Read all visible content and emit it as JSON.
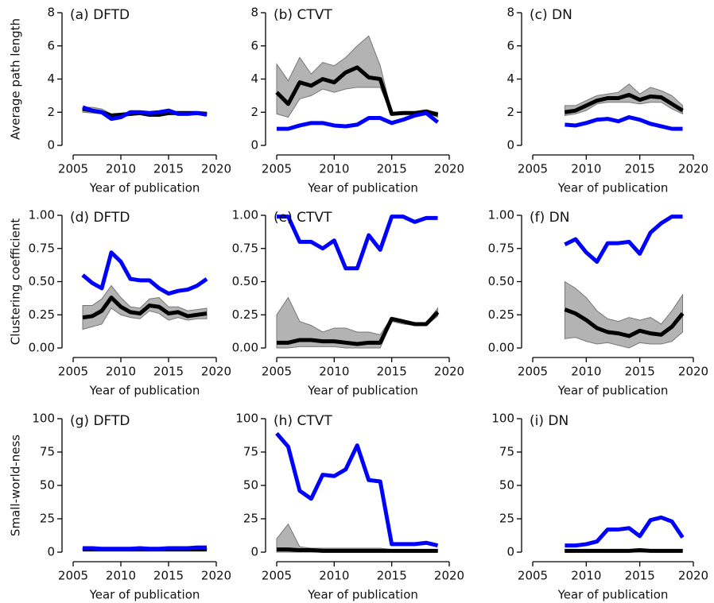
{
  "chart_data": [
    {
      "type": "line",
      "title": "(a) DFTD",
      "xlabel": "Year of publication",
      "ylabel": "Average path length",
      "x": [
        2006,
        2007,
        2008,
        2009,
        2010,
        2011,
        2012,
        2013,
        2014,
        2015,
        2016,
        2017,
        2018,
        2019
      ],
      "band": {
        "color": "#b3b3b3",
        "upper": [
          2.3,
          2.3,
          2.2,
          1.9,
          1.9,
          2.0,
          2.0,
          2.0,
          2.0,
          2.1,
          2.0,
          2.0,
          2.0,
          2.0
        ],
        "lower": [
          2.0,
          1.95,
          1.9,
          1.7,
          1.75,
          1.8,
          1.85,
          1.75,
          1.75,
          1.85,
          1.85,
          1.85,
          1.85,
          1.8
        ]
      },
      "series": [
        {
          "color": "#000000",
          "values": [
            2.2,
            2.1,
            2.0,
            1.8,
            1.85,
            1.9,
            1.95,
            1.85,
            1.85,
            1.95,
            1.95,
            1.95,
            1.95,
            1.9
          ]
        },
        {
          "color": "#0000ff",
          "values": [
            2.3,
            2.1,
            2.0,
            1.6,
            1.7,
            2.0,
            2.0,
            1.95,
            2.0,
            2.1,
            1.9,
            1.9,
            1.95,
            1.85
          ]
        }
      ],
      "xlim": [
        2005,
        2020
      ],
      "xticks": [
        2005,
        2010,
        2015,
        2020
      ],
      "ylim": [
        0,
        8
      ],
      "yticks": [
        0,
        2,
        4,
        6,
        8
      ]
    },
    {
      "type": "line",
      "title": "(b) CTVT",
      "xlabel": "Year of publication",
      "x": [
        2005,
        2006,
        2007,
        2008,
        2009,
        2010,
        2011,
        2012,
        2013,
        2014,
        2015,
        2016,
        2017,
        2018,
        2019
      ],
      "band": {
        "color": "#b3b3b3",
        "upper": [
          4.9,
          3.9,
          5.3,
          4.3,
          5.0,
          4.8,
          5.3,
          6.0,
          6.6,
          4.8,
          2.0,
          2.0,
          2.0,
          2.1,
          2.0
        ],
        "lower": [
          1.9,
          1.7,
          2.8,
          3.0,
          3.4,
          3.2,
          3.4,
          3.5,
          3.5,
          3.5,
          1.85,
          1.9,
          1.9,
          1.95,
          1.7
        ]
      },
      "series": [
        {
          "color": "#000000",
          "values": [
            3.2,
            2.5,
            3.8,
            3.6,
            4.0,
            3.8,
            4.4,
            4.7,
            4.1,
            4.0,
            1.9,
            1.95,
            1.95,
            2.05,
            1.85
          ]
        },
        {
          "color": "#0000ff",
          "values": [
            1.0,
            1.0,
            1.2,
            1.35,
            1.35,
            1.2,
            1.15,
            1.25,
            1.65,
            1.65,
            1.35,
            1.55,
            1.8,
            1.95,
            1.4
          ]
        }
      ],
      "xlim": [
        2005,
        2020
      ],
      "xticks": [
        2005,
        2010,
        2015,
        2020
      ],
      "ylim": [
        0,
        8
      ],
      "yticks": [
        0,
        2,
        4,
        6,
        8
      ]
    },
    {
      "type": "line",
      "title": "(c) DN",
      "xlabel": "Year of publication",
      "x": [
        2008,
        2009,
        2010,
        2011,
        2012,
        2013,
        2014,
        2015,
        2016,
        2017,
        2018,
        2019
      ],
      "band": {
        "color": "#b3b3b3",
        "upper": [
          2.4,
          2.4,
          2.7,
          3.0,
          3.1,
          3.2,
          3.7,
          3.1,
          3.5,
          3.3,
          3.0,
          2.4
        ],
        "lower": [
          1.8,
          1.9,
          2.1,
          2.5,
          2.6,
          2.6,
          2.6,
          2.5,
          2.6,
          2.6,
          2.2,
          1.9
        ]
      },
      "series": [
        {
          "color": "#000000",
          "values": [
            2.0,
            2.1,
            2.4,
            2.7,
            2.85,
            2.85,
            3.05,
            2.75,
            2.95,
            2.9,
            2.5,
            2.1
          ]
        },
        {
          "color": "#0000ff",
          "values": [
            1.25,
            1.2,
            1.35,
            1.55,
            1.6,
            1.45,
            1.7,
            1.55,
            1.3,
            1.15,
            1.0,
            1.0
          ]
        }
      ],
      "xlim": [
        2005,
        2020
      ],
      "xticks": [
        2005,
        2010,
        2015,
        2020
      ],
      "ylim": [
        0,
        8
      ],
      "yticks": [
        0,
        2,
        4,
        6,
        8
      ]
    },
    {
      "type": "line",
      "title": "(d) DFTD",
      "xlabel": "Year of publication",
      "ylabel": "Clustering coefficient",
      "x": [
        2006,
        2007,
        2008,
        2009,
        2010,
        2011,
        2012,
        2013,
        2014,
        2015,
        2016,
        2017,
        2018,
        2019
      ],
      "band": {
        "color": "#b3b3b3",
        "upper": [
          0.32,
          0.32,
          0.37,
          0.47,
          0.38,
          0.31,
          0.3,
          0.37,
          0.38,
          0.31,
          0.31,
          0.28,
          0.29,
          0.3
        ],
        "lower": [
          0.14,
          0.16,
          0.18,
          0.3,
          0.25,
          0.23,
          0.22,
          0.28,
          0.26,
          0.21,
          0.23,
          0.21,
          0.22,
          0.22
        ]
      },
      "series": [
        {
          "color": "#000000",
          "values": [
            0.23,
            0.24,
            0.28,
            0.38,
            0.31,
            0.27,
            0.26,
            0.32,
            0.31,
            0.26,
            0.27,
            0.24,
            0.25,
            0.26
          ]
        },
        {
          "color": "#0000ff",
          "values": [
            0.55,
            0.49,
            0.45,
            0.72,
            0.65,
            0.52,
            0.51,
            0.51,
            0.45,
            0.41,
            0.43,
            0.44,
            0.47,
            0.52
          ]
        }
      ],
      "xlim": [
        2005,
        2020
      ],
      "xticks": [
        2005,
        2010,
        2015,
        2020
      ],
      "ylim": [
        0,
        1
      ],
      "yticks": [
        {
          "value": 0,
          "label": "0.00"
        },
        {
          "value": 0.25,
          "label": "0.25"
        },
        {
          "value": 0.5,
          "label": "0.50"
        },
        {
          "value": 0.75,
          "label": "0.75"
        },
        {
          "value": 1,
          "label": "1.00"
        }
      ]
    },
    {
      "type": "line",
      "title": "(e) CTVT",
      "xlabel": "Year of publication",
      "x": [
        2005,
        2006,
        2007,
        2008,
        2009,
        2010,
        2011,
        2012,
        2013,
        2014,
        2015,
        2016,
        2017,
        2018,
        2019
      ],
      "band": {
        "color": "#b3b3b3",
        "upper": [
          0.25,
          0.38,
          0.2,
          0.17,
          0.12,
          0.15,
          0.15,
          0.12,
          0.12,
          0.1,
          0.23,
          0.21,
          0.19,
          0.19,
          0.3
        ],
        "lower": [
          0,
          0,
          0.01,
          0.01,
          0.01,
          0.01,
          0,
          0,
          0,
          0,
          0.2,
          0.18,
          0.17,
          0.17,
          0.24
        ]
      },
      "series": [
        {
          "color": "#000000",
          "values": [
            0.04,
            0.04,
            0.06,
            0.06,
            0.05,
            0.05,
            0.04,
            0.03,
            0.04,
            0.04,
            0.22,
            0.2,
            0.18,
            0.18,
            0.27
          ]
        },
        {
          "color": "#0000ff",
          "values": [
            0.99,
            0.99,
            0.8,
            0.8,
            0.75,
            0.81,
            0.6,
            0.6,
            0.85,
            0.74,
            0.99,
            0.99,
            0.95,
            0.98,
            0.98
          ]
        }
      ],
      "xlim": [
        2005,
        2020
      ],
      "xticks": [
        2005,
        2010,
        2015,
        2020
      ],
      "ylim": [
        0,
        1
      ],
      "yticks": [
        {
          "value": 0,
          "label": "0.00"
        },
        {
          "value": 0.25,
          "label": "0.25"
        },
        {
          "value": 0.5,
          "label": "0.50"
        },
        {
          "value": 0.75,
          "label": "0.75"
        },
        {
          "value": 1,
          "label": "1.00"
        }
      ]
    },
    {
      "type": "line",
      "title": "(f) DN",
      "xlabel": "Year of publication",
      "x": [
        2008,
        2009,
        2010,
        2011,
        2012,
        2013,
        2014,
        2015,
        2016,
        2017,
        2018,
        2019
      ],
      "band": {
        "color": "#b3b3b3",
        "upper": [
          0.5,
          0.45,
          0.38,
          0.28,
          0.22,
          0.2,
          0.23,
          0.21,
          0.23,
          0.18,
          0.28,
          0.4
        ],
        "lower": [
          0.07,
          0.08,
          0.05,
          0.03,
          0.04,
          0.02,
          0,
          0.04,
          0.03,
          0.03,
          0.05,
          0.12
        ]
      },
      "series": [
        {
          "color": "#000000",
          "values": [
            0.29,
            0.26,
            0.21,
            0.15,
            0.12,
            0.11,
            0.09,
            0.13,
            0.11,
            0.1,
            0.16,
            0.26
          ]
        },
        {
          "color": "#0000ff",
          "values": [
            0.78,
            0.82,
            0.72,
            0.65,
            0.79,
            0.79,
            0.8,
            0.71,
            0.87,
            0.94,
            0.99,
            0.99
          ]
        }
      ],
      "xlim": [
        2005,
        2020
      ],
      "xticks": [
        2005,
        2010,
        2015,
        2020
      ],
      "ylim": [
        0,
        1
      ],
      "yticks": [
        {
          "value": 0,
          "label": "0.00"
        },
        {
          "value": 0.25,
          "label": "0.25"
        },
        {
          "value": 0.5,
          "label": "0.50"
        },
        {
          "value": 0.75,
          "label": "0.75"
        },
        {
          "value": 1,
          "label": "1.00"
        }
      ]
    },
    {
      "type": "line",
      "title": "(g) DFTD",
      "xlabel": "Year of publication",
      "ylabel": "Small-world-ness",
      "x": [
        2006,
        2007,
        2008,
        2009,
        2010,
        2011,
        2012,
        2013,
        2014,
        2015,
        2016,
        2017,
        2018,
        2019
      ],
      "band": {
        "color": "#b3b3b3",
        "upper": [
          3,
          3,
          3,
          3,
          3,
          3,
          3,
          3,
          3,
          3,
          3,
          3,
          3,
          3
        ],
        "lower": [
          1.5,
          1.5,
          1.5,
          1.5,
          1.5,
          1.5,
          1.5,
          1.5,
          1.5,
          1.5,
          1.5,
          1.5,
          1.5,
          1.5
        ]
      },
      "series": [
        {
          "color": "#000000",
          "values": [
            2,
            2,
            2,
            2,
            2,
            2,
            2,
            2,
            2,
            2,
            2,
            2,
            2,
            2
          ]
        },
        {
          "color": "#0000ff",
          "values": [
            3,
            3,
            2.5,
            2.5,
            2.5,
            2.5,
            3,
            2.5,
            2.5,
            3,
            3,
            3,
            3.5,
            3.5
          ]
        }
      ],
      "xlim": [
        2005,
        2020
      ],
      "xticks": [
        2005,
        2010,
        2015,
        2020
      ],
      "ylim": [
        0,
        100
      ],
      "yticks": [
        0,
        25,
        50,
        75,
        100
      ]
    },
    {
      "type": "line",
      "title": "(h) CTVT",
      "xlabel": "Year of publication",
      "x": [
        2005,
        2006,
        2007,
        2008,
        2009,
        2010,
        2011,
        2012,
        2013,
        2014,
        2015,
        2016,
        2017,
        2018,
        2019
      ],
      "band": {
        "color": "#b3b3b3",
        "upper": [
          10,
          21,
          4,
          3,
          3,
          3,
          3,
          3,
          3,
          3,
          2,
          2,
          2,
          2,
          2
        ],
        "lower": [
          0,
          0,
          0,
          0,
          0,
          0,
          0,
          0,
          0,
          0,
          0,
          0,
          0,
          0,
          0
        ]
      },
      "series": [
        {
          "color": "#000000",
          "values": [
            2,
            2,
            1.5,
            1.5,
            1,
            1,
            1,
            1,
            1,
            1,
            1,
            1,
            1,
            1,
            1
          ]
        },
        {
          "color": "#0000ff",
          "values": [
            89,
            79,
            46,
            40,
            58,
            57,
            62,
            80,
            54,
            53,
            6,
            6,
            6,
            7,
            5
          ]
        }
      ],
      "xlim": [
        2005,
        2020
      ],
      "xticks": [
        2005,
        2010,
        2015,
        2020
      ],
      "ylim": [
        0,
        100
      ],
      "yticks": [
        0,
        25,
        50,
        75,
        100
      ]
    },
    {
      "type": "line",
      "title": "(i) DN",
      "xlabel": "Year of publication",
      "x": [
        2008,
        2009,
        2010,
        2011,
        2012,
        2013,
        2014,
        2015,
        2016,
        2017,
        2018,
        2019
      ],
      "band": {
        "color": "#b3b3b3",
        "upper": [
          2,
          2,
          2,
          2,
          2,
          2,
          2,
          2,
          2,
          2,
          2,
          2
        ],
        "lower": [
          0,
          0,
          0,
          0,
          0,
          0,
          0,
          0,
          0,
          0,
          0,
          0
        ]
      },
      "series": [
        {
          "color": "#000000",
          "values": [
            1,
            1,
            1,
            1,
            1,
            1,
            1,
            1.5,
            1,
            1,
            1,
            1
          ]
        },
        {
          "color": "#0000ff",
          "values": [
            5,
            5,
            6,
            8,
            17,
            17,
            18,
            12,
            24,
            26,
            23,
            11
          ]
        }
      ],
      "xlim": [
        2005,
        2020
      ],
      "xticks": [
        2005,
        2010,
        2015,
        2020
      ],
      "ylim": [
        0,
        100
      ],
      "yticks": [
        0,
        25,
        50,
        75,
        100
      ]
    }
  ]
}
